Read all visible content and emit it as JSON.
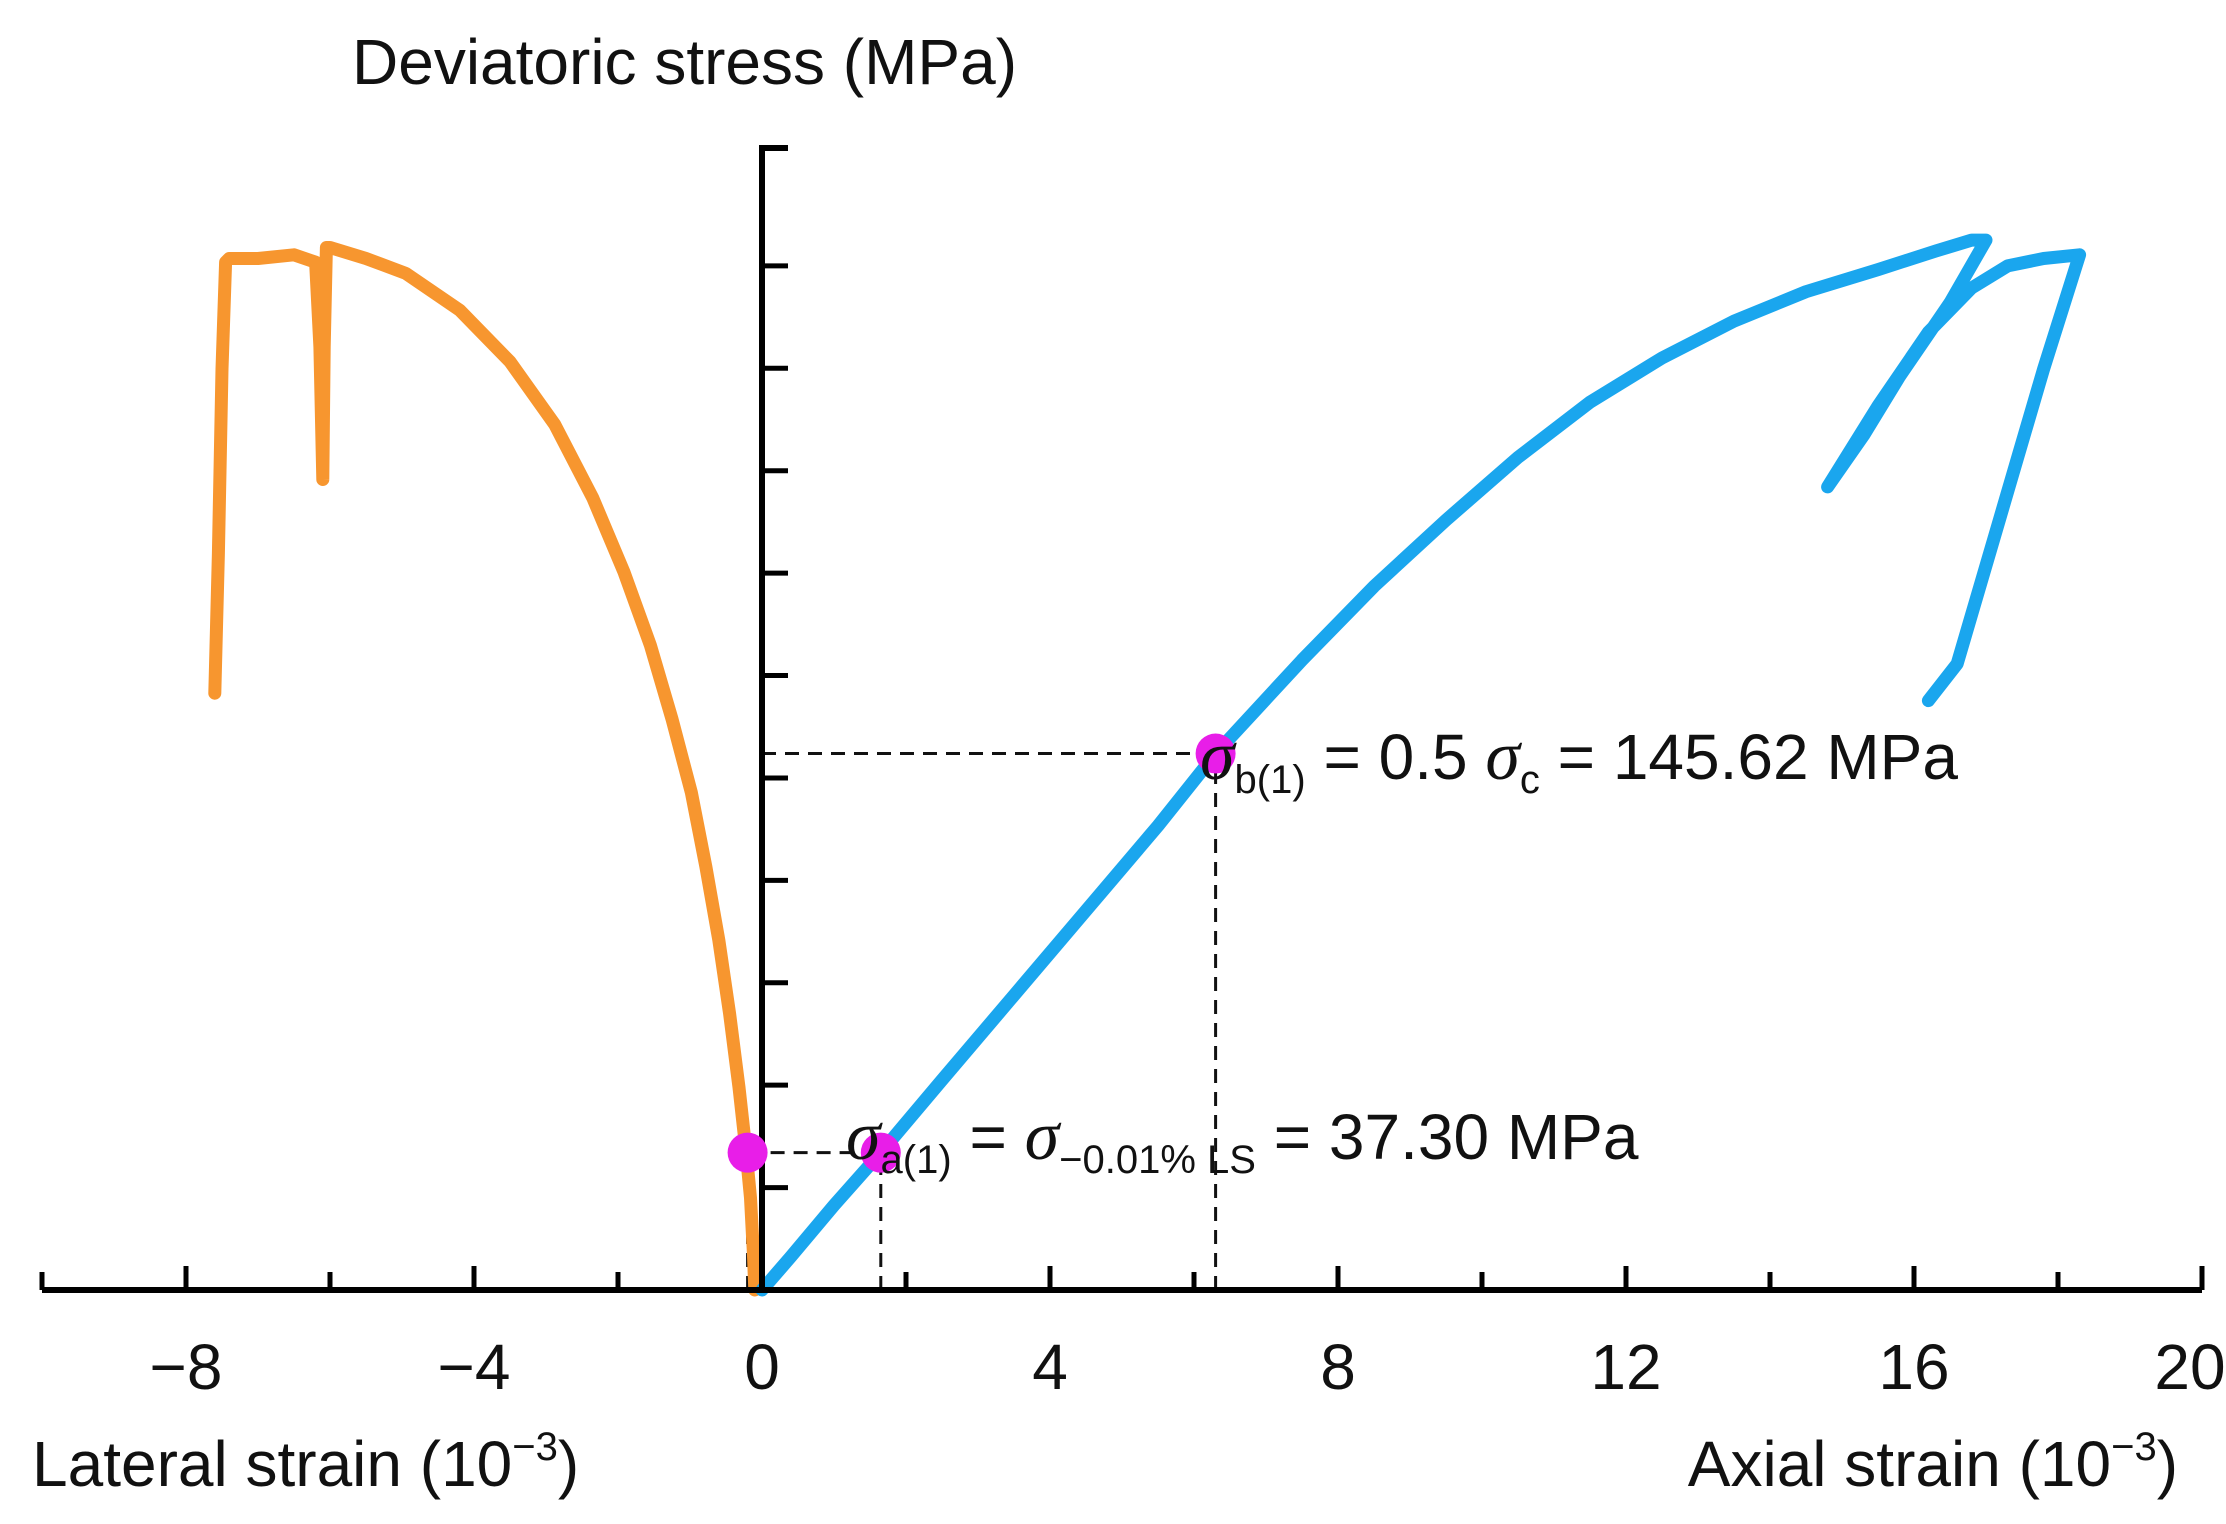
{
  "chart_data": {
    "type": "line",
    "title": "",
    "ylabel": "Deviatoric stress (MPa)",
    "xlabel_left": "Lateral strain (10−3)",
    "xlabel_right": "Axial strain (10−3)",
    "xlabel_left_text": "Lateral strain (10",
    "xlabel_left_exp": "−3",
    "xlabel_right_text": "Axial strain (10",
    "xlabel_right_exp": "−3",
    "xlim": [
      -10,
      20
    ],
    "ylim": [
      0,
      310
    ],
    "x_ticks": [
      -8,
      -4,
      0,
      4,
      8,
      12,
      16,
      20
    ],
    "x_tick_labels": [
      "−8",
      "−4",
      "0",
      "4",
      "8",
      "12",
      "16",
      "20"
    ],
    "y_ticks": [
      27.8,
      55.6,
      83.4,
      111.2,
      139.0,
      166.8,
      194.6,
      222.4,
      250.2,
      278.0
    ],
    "grid": false,
    "series": [
      {
        "name": "Lateral strain",
        "color": "#f7962f",
        "points": [
          [
            -0.1,
            0
          ],
          [
            -0.12,
            10
          ],
          [
            -0.16,
            25
          ],
          [
            -0.22,
            37.3
          ],
          [
            -0.32,
            55
          ],
          [
            -0.45,
            75
          ],
          [
            -0.6,
            95
          ],
          [
            -0.78,
            115
          ],
          [
            -0.98,
            135
          ],
          [
            -1.25,
            155
          ],
          [
            -1.55,
            175
          ],
          [
            -1.92,
            195
          ],
          [
            -2.35,
            215
          ],
          [
            -2.88,
            235
          ],
          [
            -3.5,
            252
          ],
          [
            -4.2,
            266
          ],
          [
            -4.95,
            276
          ],
          [
            -5.5,
            280
          ],
          [
            -6.0,
            283
          ],
          [
            -6.05,
            283
          ],
          [
            -6.08,
            256
          ],
          [
            -6.1,
            220
          ],
          [
            -6.14,
            256
          ],
          [
            -6.2,
            279
          ],
          [
            -6.5,
            281
          ],
          [
            -7.0,
            280
          ],
          [
            -7.4,
            280
          ],
          [
            -7.45,
            279
          ],
          [
            -7.5,
            250
          ],
          [
            -7.55,
            200
          ],
          [
            -7.6,
            162
          ]
        ]
      },
      {
        "name": "Axial strain",
        "color": "#1aa6ee",
        "points": [
          [
            0,
            0
          ],
          [
            0.4,
            9
          ],
          [
            1.0,
            23
          ],
          [
            1.65,
            37.3
          ],
          [
            2.5,
            57
          ],
          [
            3.5,
            80
          ],
          [
            4.5,
            103
          ],
          [
            5.5,
            126
          ],
          [
            6.3,
            145.62
          ],
          [
            7.5,
            171
          ],
          [
            8.5,
            191
          ],
          [
            9.5,
            209
          ],
          [
            10.5,
            226
          ],
          [
            11.5,
            241
          ],
          [
            12.5,
            253
          ],
          [
            13.5,
            263
          ],
          [
            14.5,
            271
          ],
          [
            15.5,
            277
          ],
          [
            16.3,
            282
          ],
          [
            16.8,
            285
          ],
          [
            17.0,
            285
          ],
          [
            16.5,
            268
          ],
          [
            15.8,
            248
          ],
          [
            15.3,
            232
          ],
          [
            14.8,
            218
          ],
          [
            15.5,
            240
          ],
          [
            16.2,
            260
          ],
          [
            16.8,
            272
          ],
          [
            17.3,
            278
          ],
          [
            17.8,
            280
          ],
          [
            18.3,
            281
          ],
          [
            17.8,
            250
          ],
          [
            17.2,
            210
          ],
          [
            16.6,
            170
          ],
          [
            16.2,
            160
          ]
        ]
      }
    ],
    "points_of_interest": [
      {
        "name": "sigma_a_lateral",
        "x": -0.2,
        "y": 37.3,
        "color": "#e81ee8"
      },
      {
        "name": "sigma_a_axial",
        "x": 1.65,
        "y": 37.3,
        "color": "#e81ee8"
      },
      {
        "name": "sigma_b_axial",
        "x": 6.3,
        "y": 145.62,
        "color": "#e81ee8"
      }
    ],
    "reference_lines": [
      {
        "type": "h",
        "y": 145.62,
        "x_from": 0,
        "x_to": 6.3
      },
      {
        "type": "v",
        "x": 6.3,
        "y_from": 0,
        "y_to": 145.62
      },
      {
        "type": "h",
        "y": 37.3,
        "x_from": -0.2,
        "x_to": 1.65
      },
      {
        "type": "v",
        "x": -0.2,
        "y_from": 0,
        "y_to": 37.3
      },
      {
        "type": "v",
        "x": 1.65,
        "y_from": 0,
        "y_to": 37.3
      }
    ],
    "annotations": [
      {
        "id": "b",
        "text": "σb(1) = 0.5 σc = 145.62 MPa",
        "sym1": "σ",
        "sub1": "b(1)",
        "mid": " = 0.5 ",
        "sym2": "σ",
        "sub2": "c",
        "tail": " = 145.62 MPa"
      },
      {
        "id": "a",
        "text": "σa(1) = σ−0.01% LS = 37.30 MPa",
        "sym1": "σ",
        "sub1": "a(1)",
        "mid": " = ",
        "sym2": "σ",
        "sub2": "−0.01% LS",
        "tail": " = 37.30 MPa"
      }
    ]
  }
}
